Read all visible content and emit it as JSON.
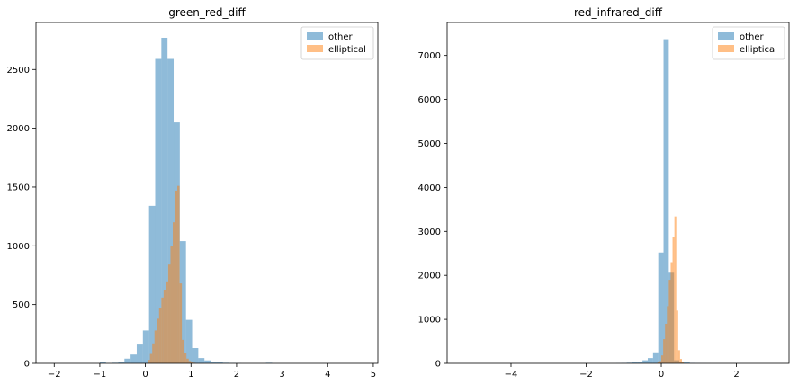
{
  "chart_data": [
    {
      "type": "histogram",
      "title": "green_red_diff",
      "xlim": [
        -2.4,
        5.1
      ],
      "ylim": [
        0,
        2900
      ],
      "xticks": [
        -2,
        -1,
        0,
        1,
        2,
        3,
        4,
        5
      ],
      "yticks": [
        0,
        500,
        1000,
        1500,
        2000,
        2500
      ],
      "legend": {
        "position": "top-right",
        "entries": [
          "other",
          "elliptical"
        ]
      },
      "series": [
        {
          "name": "other",
          "color": "#1f77b4",
          "opacity": 0.5,
          "bin_edges": [
            -1.0,
            -0.865,
            -0.73,
            -0.595,
            -0.46,
            -0.325,
            -0.19,
            -0.055,
            0.08,
            0.215,
            0.35,
            0.485,
            0.62,
            0.755,
            0.89,
            1.025,
            1.16,
            1.295,
            1.43,
            1.565,
            1.7,
            1.835,
            1.97,
            2.105,
            2.24,
            2.375,
            2.51,
            2.645,
            2.78
          ],
          "counts": [
            8,
            0,
            5,
            15,
            40,
            75,
            160,
            280,
            1340,
            2590,
            2770,
            2590,
            2050,
            1040,
            370,
            130,
            45,
            25,
            15,
            10,
            5,
            3,
            2,
            0,
            0,
            0,
            0,
            5
          ]
        },
        {
          "name": "elliptical",
          "color": "#ff7f0e",
          "opacity": 0.5,
          "bin_edges": [
            0.05,
            0.1,
            0.15,
            0.2,
            0.25,
            0.3,
            0.35,
            0.4,
            0.45,
            0.5,
            0.55,
            0.6,
            0.65,
            0.7,
            0.75,
            0.8,
            0.85,
            0.9,
            0.95,
            1.0,
            1.05,
            1.1
          ],
          "counts": [
            30,
            80,
            170,
            280,
            380,
            470,
            560,
            620,
            690,
            840,
            1000,
            1200,
            1470,
            1510,
            680,
            200,
            90,
            40,
            20,
            10,
            5
          ]
        }
      ]
    },
    {
      "type": "histogram",
      "title": "red_infrared_diff",
      "xlim": [
        -5.7,
        3.4
      ],
      "ylim": [
        0,
        7750
      ],
      "xticks": [
        -4,
        -2,
        0,
        2
      ],
      "yticks": [
        0,
        1000,
        2000,
        3000,
        4000,
        5000,
        6000,
        7000
      ],
      "legend": {
        "position": "top-right",
        "entries": [
          "other",
          "elliptical"
        ]
      },
      "series": [
        {
          "name": "other",
          "color": "#1f77b4",
          "opacity": 0.5,
          "bin_edges": [
            -1.2,
            -1.06,
            -0.92,
            -0.78,
            -0.64,
            -0.5,
            -0.36,
            -0.22,
            -0.08,
            0.06,
            0.2,
            0.34,
            0.48,
            0.62,
            0.76,
            0.9,
            1.04,
            1.18,
            1.32
          ],
          "counts": [
            5,
            10,
            15,
            25,
            40,
            70,
            120,
            250,
            2520,
            7370,
            2060,
            70,
            35,
            20,
            10,
            5,
            3,
            2
          ]
        },
        {
          "name": "elliptical",
          "color": "#ff7f0e",
          "opacity": 0.5,
          "bin_edges": [
            -0.1,
            -0.05,
            0.0,
            0.05,
            0.1,
            0.15,
            0.2,
            0.25,
            0.3,
            0.35,
            0.4,
            0.45,
            0.5,
            0.55,
            0.6
          ],
          "counts": [
            20,
            50,
            180,
            550,
            900,
            1300,
            1900,
            2300,
            2870,
            3340,
            1200,
            300,
            100,
            30
          ]
        }
      ]
    }
  ]
}
